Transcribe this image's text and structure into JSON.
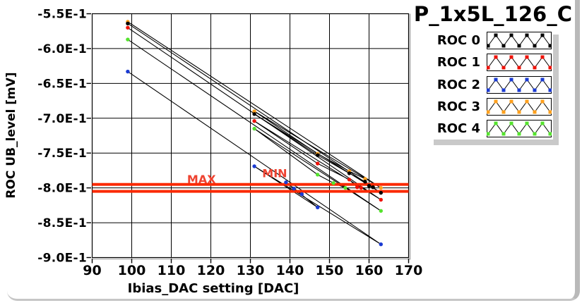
{
  "window": {
    "title": "P_1x5L_126_C"
  },
  "chart_data": {
    "type": "line",
    "title": "P_1x5L_126_C",
    "xlabel": "Ibias_DAC setting [DAC]",
    "ylabel": "ROC UB_level [mV]",
    "xlim": [
      90,
      170
    ],
    "ylim": [
      -0.9,
      -0.55
    ],
    "grid": true,
    "legend_position": "top-right",
    "axis_color": "#000000",
    "grid_color": "#000000",
    "x_ticks": [
      {
        "label": "90",
        "value": 90
      },
      {
        "label": "100",
        "value": 100
      },
      {
        "label": "110",
        "value": 110
      },
      {
        "label": "120",
        "value": 120
      },
      {
        "label": "130",
        "value": 130
      },
      {
        "label": "140",
        "value": 140
      },
      {
        "label": "150",
        "value": 150
      },
      {
        "label": "160",
        "value": 160
      },
      {
        "label": "170",
        "value": 170
      }
    ],
    "y_ticks": [
      {
        "label": "-5.5E-1",
        "value": -0.55
      },
      {
        "label": "-6.0E-1",
        "value": -0.6
      },
      {
        "label": "-6.5E-1",
        "value": -0.65
      },
      {
        "label": "-7.0E-1",
        "value": -0.7
      },
      {
        "label": "-7.5E-1",
        "value": -0.75
      },
      {
        "label": "-8.0E-1",
        "value": -0.8
      },
      {
        "label": "-8.5E-1",
        "value": -0.85
      },
      {
        "label": "-9.0E-1",
        "value": -0.9
      }
    ],
    "limit_lines": [
      {
        "name": "MAX",
        "label": "MAX",
        "value": -0.795,
        "label_x": 114,
        "label_y": -0.7935,
        "line_color": "#fb2900",
        "label_color": "#ee4331"
      },
      {
        "name": "MIN",
        "label": "MIN",
        "value": -0.805,
        "label_x": 133,
        "label_y": -0.7845,
        "line_color": "#fb2900",
        "label_color": "#ee4331"
      }
    ],
    "series": [
      {
        "name": "ROC 0",
        "line_color": "#000000",
        "marker_color": "#000000",
        "points": [
          [
            99,
            -0.564
          ],
          [
            163,
            -0.807
          ],
          [
            131,
            -0.694
          ],
          [
            147,
            -0.753
          ],
          [
            155,
            -0.779
          ],
          [
            159,
            -0.791
          ],
          [
            161,
            -0.799
          ],
          [
            160,
            -0.797
          ]
        ]
      },
      {
        "name": "ROC 1",
        "line_color": "#000000",
        "marker_color": "#ee1208",
        "points": [
          [
            99,
            -0.57
          ],
          [
            163,
            -0.817
          ],
          [
            131,
            -0.704
          ],
          [
            147,
            -0.765
          ],
          [
            155,
            -0.788
          ],
          [
            157,
            -0.799
          ],
          [
            158,
            -0.8
          ]
        ]
      },
      {
        "name": "ROC 2",
        "line_color": "#000000",
        "marker_color": "#1a3ad2",
        "points": [
          [
            99,
            -0.633
          ],
          [
            163,
            -0.881
          ],
          [
            131,
            -0.769
          ],
          [
            147,
            -0.828
          ],
          [
            139,
            -0.792
          ],
          [
            143,
            -0.809
          ],
          [
            141,
            -0.801
          ]
        ]
      },
      {
        "name": "ROC 3",
        "line_color": "#000000",
        "marker_color": "#ffa01e",
        "points": [
          [
            99,
            -0.5615
          ],
          [
            163,
            -0.8
          ],
          [
            131,
            -0.69
          ],
          [
            147,
            -0.751
          ],
          [
            155,
            -0.776
          ],
          [
            159,
            -0.787
          ]
        ]
      },
      {
        "name": "ROC 4",
        "line_color": "#000000",
        "marker_color": "#55e32e",
        "points": [
          [
            99,
            -0.587
          ],
          [
            163,
            -0.833
          ],
          [
            131,
            -0.715
          ],
          [
            147,
            -0.781
          ],
          [
            151,
            -0.793
          ],
          [
            154,
            -0.8
          ]
        ]
      }
    ]
  },
  "legend": {
    "items": [
      {
        "label": "ROC 0",
        "color": "#000000"
      },
      {
        "label": "ROC 1",
        "color": "#ee1208"
      },
      {
        "label": "ROC 2",
        "color": "#1a3ad2"
      },
      {
        "label": "ROC 3",
        "color": "#ffa01e"
      },
      {
        "label": "ROC 4",
        "color": "#55e32e"
      }
    ]
  }
}
